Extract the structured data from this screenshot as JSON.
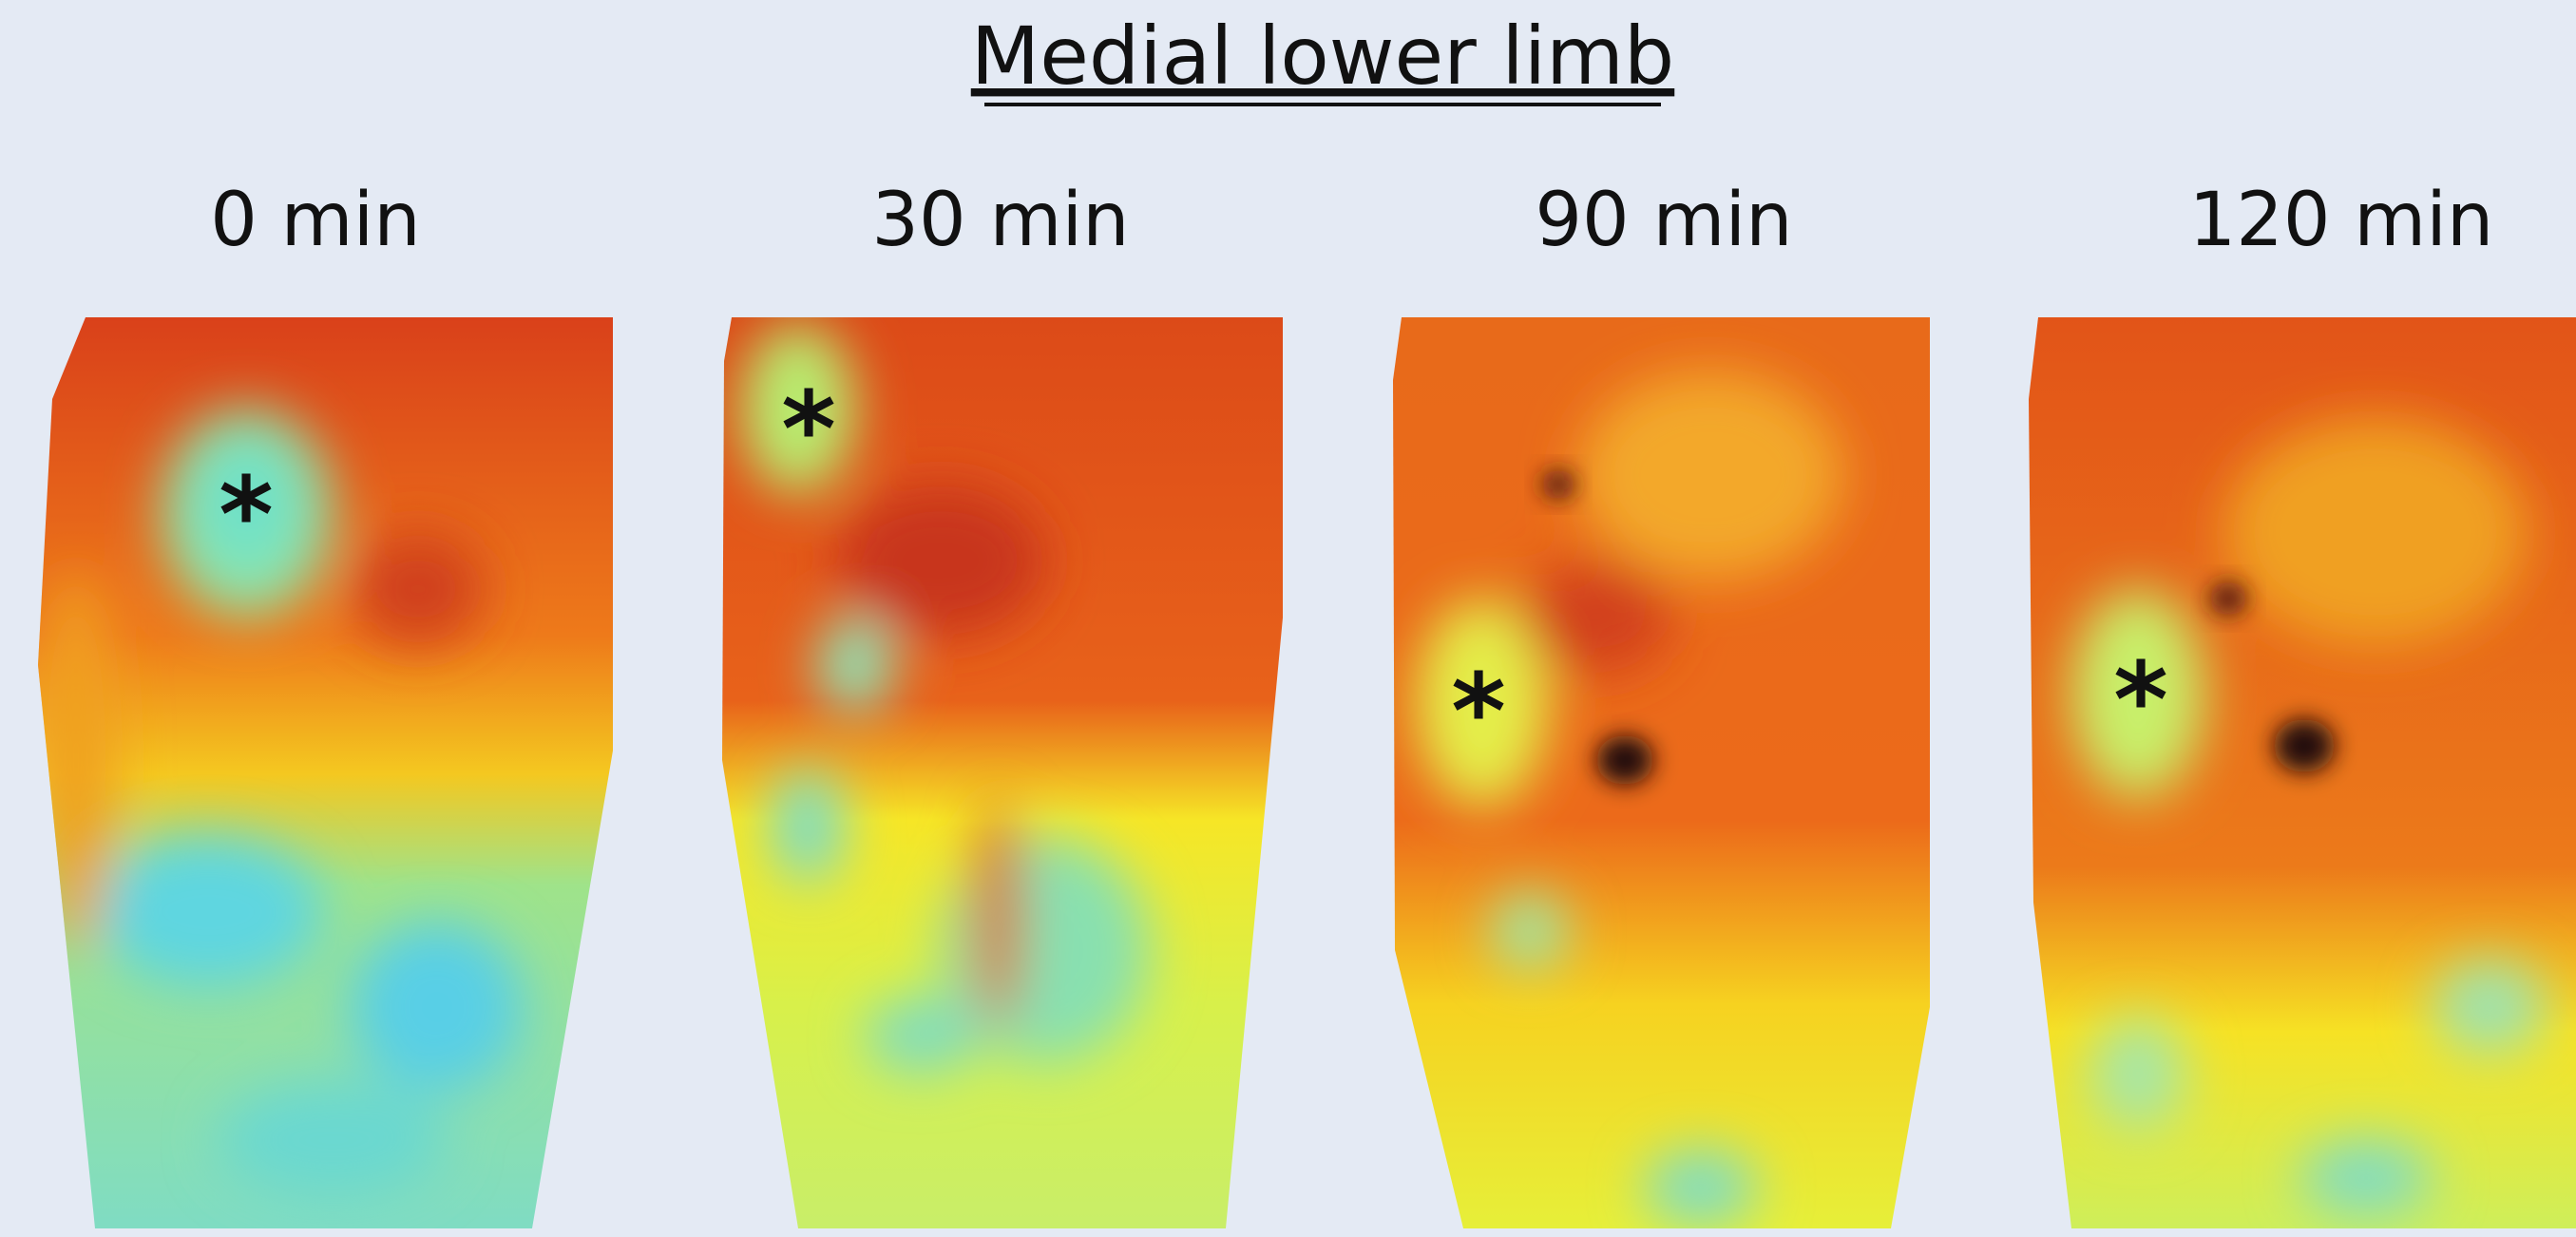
{
  "title": "Medial lower limb",
  "panels": [
    {
      "label": "0 min",
      "marker": "*"
    },
    {
      "label": "30 min",
      "marker": "*"
    },
    {
      "label": "90 min",
      "marker": "*"
    },
    {
      "label": "120 min",
      "marker": "*"
    }
  ]
}
